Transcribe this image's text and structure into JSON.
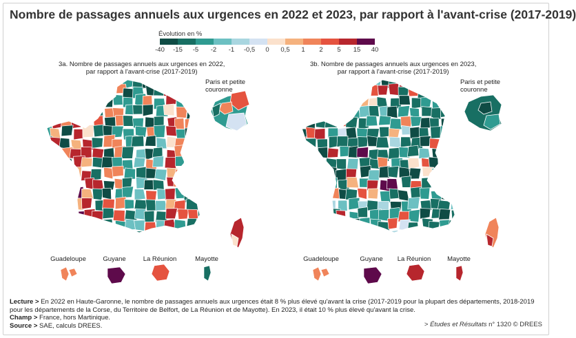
{
  "title": "Nombre de passages annuels aux urgences en 2022 et 2023, par rapport à l'avant-crise (2017-2019)",
  "legend": {
    "title": "Évolution en %",
    "ticks": [
      "-40",
      "-15",
      "-5",
      "-2",
      "-1",
      "-0,5",
      "0",
      "0,5",
      "1",
      "2",
      "5",
      "15",
      "40"
    ],
    "colors": [
      "#0f4c45",
      "#186f63",
      "#2f9b91",
      "#6cc0c2",
      "#a9d6e0",
      "#d4e2f2",
      "#fbe1cc",
      "#f5b27e",
      "#f0845a",
      "#e5533f",
      "#b7262d",
      "#5e0a4b"
    ]
  },
  "maps": {
    "left_title_line1": "3a. Nombre de passages annuels aux urgences en 2022,",
    "left_title_line2": "par rapport à l'avant-crise (2017-2019)",
    "right_title_line1": "3b. Nombre de passages annuels aux urgences en 2023,",
    "right_title_line2": "par rapport à l'avant-crise (2017-2019)",
    "paris_line1": "Paris et petite",
    "paris_line2": "couronne",
    "overseas": [
      "Guadeloupe",
      "Guyane",
      "La Réunion",
      "Mayotte"
    ]
  },
  "notes": {
    "lecture_label": "Lecture >",
    "lecture_text": " En 2022 en Haute-Garonne, le nombre de passages annuels aux urgences était 8 % plus élevé qu'avant la crise (2017-2019 pour la plupart des départements, 2018-2019 pour les départements de la Corse, du Territoire de Belfort, de La Réunion et de Mayotte). En 2023, il était 10 % plus élevé qu'avant la crise.",
    "champ_label": "Champ >",
    "champ_text": " France, hors Martinique.",
    "source_label": "Source >",
    "source_text": " SAE, calculs DREES.",
    "ref_prefix": "> ",
    "ref_italic": "Études et Résultats",
    "ref_suffix": " n° 1320 © DREES"
  }
}
